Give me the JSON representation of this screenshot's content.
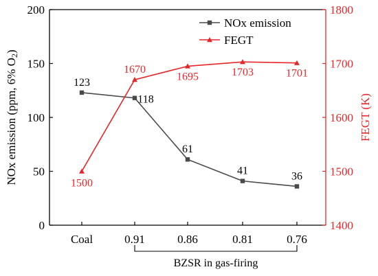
{
  "chart_data": {
    "type": "line",
    "categories": [
      "Coal",
      "0.91",
      "0.86",
      "0.81",
      "0.76"
    ],
    "category_group_label": "BZSR in gas-firing",
    "category_group_range": [
      "0.91",
      "0.76"
    ],
    "left_axis": {
      "label_main": "NOx emission (ppm, 6% O",
      "label_sub": "2",
      "label_end": ")",
      "ylim": [
        0,
        200
      ],
      "ticks": [
        "0",
        "50",
        "100",
        "150",
        "200"
      ],
      "color": "#000000"
    },
    "right_axis": {
      "label": "FEGT (K)",
      "ylim": [
        1400,
        1800
      ],
      "ticks": [
        "1400",
        "1500",
        "1600",
        "1700",
        "1800"
      ],
      "color": "#e8262a"
    },
    "series": [
      {
        "name": "NOx emission",
        "axis": "left",
        "color": "#4a4a4a",
        "marker": "square",
        "values": [
          123,
          118,
          61,
          41,
          36
        ],
        "labels": [
          "123",
          "118",
          "61",
          "41",
          "36"
        ]
      },
      {
        "name": "FEGT",
        "axis": "right",
        "color": "#e8262a",
        "marker": "triangle",
        "values": [
          1500,
          1670,
          1695,
          1703,
          1701
        ],
        "labels": [
          "1500",
          "1670",
          "1695",
          "1703",
          "1701"
        ]
      }
    ],
    "legend_position": "top-right",
    "grid": false
  }
}
